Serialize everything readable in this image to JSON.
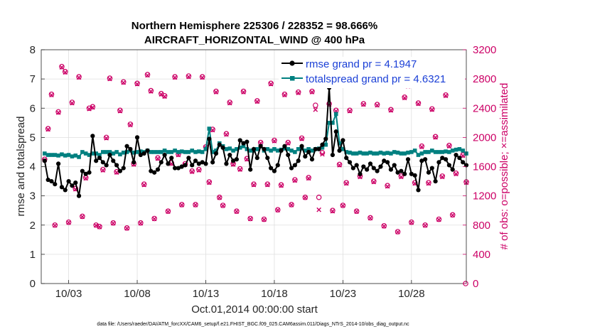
{
  "chart_data": {
    "type": "line",
    "title": "Northern Hemisphere 225306 / 228352 = 98.666%",
    "subtitle": "AIRCRAFT_HORIZONTAL_WIND @ 400 hPa",
    "xlabel": "Oct.01,2014 00:00:00 start",
    "ylabel_left": "rmse and totalspread",
    "ylabel_right": "# of obs: o=possible; ×=assimilated",
    "footnote": "data file: /Users/raeder/DAI/ATM_forcXX/CAM6_setup/f.e21.FHIST_BGC.f09_025.CAM6assim.011/Diags_NTrS_2014-10/obs_diag_output.nc",
    "x_tick_labels": [
      "10/03",
      "10/08",
      "10/13",
      "10/18",
      "10/23",
      "10/28"
    ],
    "x_tick_days": [
      3,
      8,
      13,
      18,
      23,
      28
    ],
    "xlim_days": [
      1.0,
      32.0
    ],
    "ylim_left": [
      0,
      8
    ],
    "yticks_left": [
      "0",
      "1",
      "2",
      "3",
      "4",
      "5",
      "6",
      "7",
      "8"
    ],
    "ylim_right": [
      0,
      3200
    ],
    "yticks_right": [
      "0",
      "400",
      "800",
      "1200",
      "1600",
      "2000",
      "2400",
      "2800",
      "3200"
    ],
    "grid": true,
    "legend_location": "top-right",
    "x_days": [
      1.25,
      1.5,
      1.75,
      2.0,
      2.25,
      2.5,
      2.75,
      3.0,
      3.25,
      3.5,
      3.75,
      4.0,
      4.25,
      4.5,
      4.75,
      5.0,
      5.25,
      5.5,
      5.75,
      6.0,
      6.25,
      6.5,
      6.75,
      7.0,
      7.25,
      7.5,
      7.75,
      8.0,
      8.25,
      8.5,
      8.75,
      9.0,
      9.25,
      9.5,
      9.75,
      10.0,
      10.25,
      10.5,
      10.75,
      11.0,
      11.25,
      11.5,
      11.75,
      12.0,
      12.25,
      12.5,
      12.75,
      13.0,
      13.25,
      13.5,
      13.75,
      14.0,
      14.25,
      14.5,
      14.75,
      15.0,
      15.25,
      15.5,
      15.75,
      16.0,
      16.25,
      16.5,
      16.75,
      17.0,
      17.25,
      17.5,
      17.75,
      18.0,
      18.25,
      18.5,
      18.75,
      19.0,
      19.25,
      19.5,
      19.75,
      20.0,
      20.25,
      20.5,
      20.75,
      21.0,
      21.25,
      21.5,
      21.75,
      22.0,
      22.25,
      22.5,
      22.75,
      23.0,
      23.25,
      23.5,
      23.75,
      24.0,
      24.25,
      24.5,
      24.75,
      25.0,
      25.25,
      25.5,
      25.75,
      26.0,
      26.25,
      26.5,
      26.75,
      27.0,
      27.25,
      27.5,
      27.75,
      28.0,
      28.25,
      28.5,
      28.75,
      29.0,
      29.25,
      29.5,
      29.75,
      30.0,
      30.25,
      30.5,
      30.75,
      31.0,
      31.25,
      31.5,
      31.75,
      32.0
    ],
    "series": [
      {
        "name": "rmse grand pr = 4.1947",
        "axis": "left",
        "color": "#000000",
        "marker": "filled-circle",
        "values": [
          4.2,
          3.55,
          3.5,
          3.4,
          4.1,
          3.3,
          3.2,
          3.5,
          3.35,
          3.45,
          3.0,
          3.85,
          3.75,
          3.8,
          5.05,
          4.2,
          4.3,
          4.15,
          4.05,
          4.4,
          4.2,
          4.05,
          3.85,
          3.95,
          4.7,
          4.6,
          4.15,
          5.0,
          4.4,
          4.45,
          4.55,
          3.85,
          3.8,
          3.9,
          4.15,
          4.4,
          4.1,
          4.3,
          3.95,
          3.95,
          4.0,
          4.05,
          4.3,
          4.05,
          4.2,
          4.1,
          4.15,
          4.1,
          4.95,
          4.15,
          4.45,
          4.75,
          4.65,
          4.1,
          4.4,
          4.2,
          4.25,
          4.9,
          4.8,
          4.85,
          3.9,
          4.6,
          4.3,
          4.7,
          4.6,
          4.3,
          3.95,
          3.85,
          4.05,
          4.55,
          4.7,
          4.4,
          3.95,
          4.05,
          4.2,
          4.7,
          4.35,
          4.5,
          4.25,
          4.6,
          4.6,
          4.75,
          4.95,
          6.7,
          4.4,
          5.2,
          4.55,
          4.9,
          4.3,
          4.15,
          3.95,
          4.05,
          3.75,
          4.0,
          3.9,
          4.1,
          3.95,
          3.85,
          4.0,
          4.2,
          4.15,
          3.9,
          4.05,
          3.8,
          3.85,
          3.75,
          4.25,
          3.75,
          3.7,
          3.2,
          4.2,
          4.25,
          3.8,
          3.95,
          3.5,
          4.15,
          4.3,
          4.25,
          4.05,
          3.9,
          4.4,
          4.3,
          4.15,
          4.05
        ]
      },
      {
        "name": "totalspread grand pr = 4.6321",
        "axis": "left",
        "color": "#008080",
        "marker": "filled-square",
        "values": [
          4.45,
          4.4,
          4.4,
          4.4,
          4.38,
          4.42,
          4.38,
          4.4,
          4.35,
          4.38,
          4.33,
          4.5,
          4.45,
          4.4,
          4.45,
          4.45,
          4.4,
          4.5,
          4.5,
          4.5,
          4.45,
          4.5,
          4.42,
          4.48,
          4.5,
          4.55,
          4.48,
          4.5,
          4.52,
          4.5,
          4.55,
          4.5,
          4.5,
          4.5,
          4.5,
          4.55,
          4.5,
          4.5,
          4.55,
          4.5,
          4.52,
          4.5,
          4.5,
          4.55,
          4.5,
          4.52,
          4.5,
          4.6,
          5.3,
          4.5,
          4.55,
          4.8,
          4.7,
          4.6,
          4.62,
          4.55,
          4.6,
          4.65,
          4.7,
          4.6,
          4.55,
          4.55,
          4.6,
          4.7,
          4.55,
          4.6,
          4.55,
          4.6,
          4.55,
          4.58,
          4.62,
          4.6,
          4.55,
          4.5,
          4.6,
          4.62,
          4.55,
          4.6,
          4.55,
          4.6,
          4.62,
          4.65,
          4.75,
          5.5,
          5.5,
          5.8,
          4.8,
          4.6,
          4.5,
          4.48,
          4.45,
          4.45,
          4.48,
          4.45,
          4.45,
          4.48,
          4.45,
          4.45,
          4.48,
          4.45,
          4.47,
          4.45,
          4.5,
          4.48,
          4.45,
          4.45,
          4.48,
          4.5,
          4.55,
          4.4,
          4.45,
          4.5,
          4.5,
          4.55,
          4.5,
          4.5,
          4.5,
          4.52,
          4.5,
          4.55,
          4.58,
          4.6,
          4.55,
          4.45
        ]
      },
      {
        "name": "possible",
        "axis": "right",
        "color": "#cc0066",
        "marker": "open-circle",
        "values": [
          1700,
          2120,
          2590,
          800,
          2350,
          2970,
          2900,
          840,
          2480,
          1300,
          2830,
          920,
          1450,
          2400,
          2420,
          800,
          780,
          1560,
          2000,
          2810,
          830,
          1530,
          2370,
          2760,
          760,
          2180,
          1640,
          2740,
          830,
          1360,
          2860,
          2640,
          890,
          1720,
          2600,
          2570,
          990,
          1650,
          2830,
          1770,
          1080,
          1640,
          2840,
          1540,
          1080,
          1560,
          2830,
          1870,
          1390,
          2110,
          2630,
          1180,
          1070,
          2050,
          2480,
          1640,
          990,
          1570,
          2630,
          1710,
          890,
          1360,
          2500,
          1930,
          880,
          1360,
          2740,
          1960,
          1010,
          1350,
          2590,
          1930,
          1080,
          1420,
          2620,
          1990,
          1180,
          1450,
          2630,
          2440,
          1180,
          1790,
          2910,
          2460,
          1000,
          2370,
          1630,
          1070,
          1380,
          2370,
          2780,
          990,
          1470,
          2460,
          2840,
          900,
          1400,
          2450,
          2760,
          790,
          1340,
          2380,
          2750,
          710,
          1470,
          2550,
          2710,
          840,
          1380,
          2470,
          1880,
          800,
          1380,
          2390,
          2010,
          880,
          1470,
          2580,
          1890,
          940,
          1510,
          2740,
          1760,
          1390
        ]
      },
      {
        "name": "assimilated",
        "axis": "right",
        "color": "#cc0066",
        "marker": "cross",
        "values": [
          1690,
          2110,
          2580,
          795,
          2340,
          2960,
          2890,
          835,
          2470,
          1290,
          2820,
          915,
          1440,
          2390,
          2410,
          795,
          775,
          1550,
          1990,
          2800,
          825,
          1520,
          2360,
          2750,
          755,
          2170,
          1630,
          2730,
          825,
          1350,
          2850,
          2630,
          885,
          1710,
          2590,
          2560,
          985,
          1640,
          2820,
          1760,
          1075,
          1630,
          2830,
          1530,
          1075,
          1550,
          2820,
          1860,
          1380,
          2100,
          2620,
          1175,
          1065,
          2040,
          2470,
          1630,
          985,
          1560,
          2620,
          1700,
          885,
          1350,
          2490,
          1920,
          875,
          1350,
          2730,
          1950,
          1005,
          1340,
          2580,
          1920,
          1075,
          1410,
          2610,
          1980,
          1175,
          1440,
          2620,
          2380,
          1010,
          1770,
          2900,
          2450,
          990,
          2360,
          1620,
          1065,
          1370,
          2360,
          2770,
          985,
          1460,
          2450,
          2830,
          895,
          1390,
          2440,
          2750,
          785,
          1330,
          2370,
          2740,
          705,
          1460,
          2540,
          2700,
          835,
          1370,
          2460,
          1870,
          795,
          1370,
          2380,
          2000,
          875,
          1460,
          2570,
          1880,
          935,
          1500,
          2730,
          1750,
          1380
        ]
      }
    ],
    "trailing_point": {
      "day": 31.95,
      "value": 0,
      "axis": "right"
    }
  }
}
